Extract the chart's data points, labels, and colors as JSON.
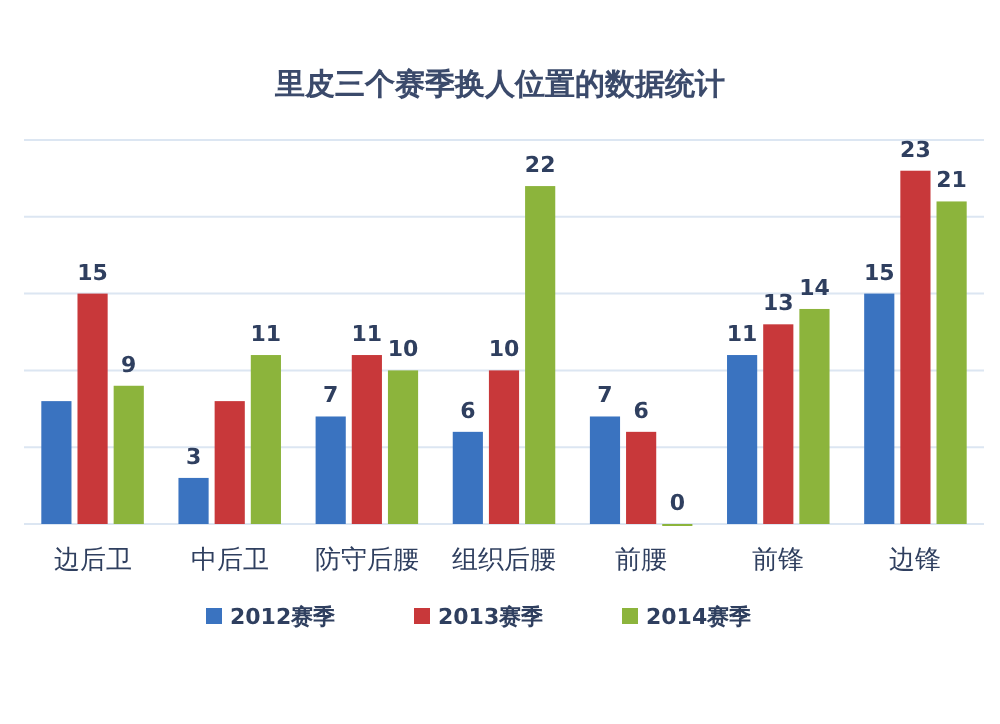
{
  "chart_data": {
    "type": "bar",
    "title": "里皮三个赛季换人位置的数据统计",
    "categories": [
      "边后卫",
      "中后卫",
      "防守后腰",
      "组织后腰",
      "前腰",
      "前锋",
      "边锋"
    ],
    "series": [
      {
        "name": "2012赛季",
        "color": "#3a73c0",
        "values": [
          8,
          3,
          7,
          6,
          7,
          11,
          15
        ],
        "value_labels": [
          null,
          "3",
          "7",
          "6",
          "7",
          "11",
          "15"
        ]
      },
      {
        "name": "2013赛季",
        "color": "#c8383a",
        "values": [
          15,
          8,
          11,
          10,
          6,
          13,
          23
        ],
        "value_labels": [
          "15",
          null,
          "11",
          "10",
          "6",
          "13",
          "23"
        ]
      },
      {
        "name": "2014赛季",
        "color": "#8cb43c",
        "values": [
          9,
          11,
          10,
          22,
          0,
          14,
          21
        ],
        "value_labels": [
          "9",
          "11",
          "10",
          "22",
          "0",
          "14",
          "21"
        ]
      }
    ],
    "ylim": [
      0,
      25
    ],
    "yticks": [
      {
        "value": 0,
        "label": null
      },
      {
        "value": 5,
        "label": null
      },
      {
        "value": 10,
        "label": null
      },
      {
        "value": 15,
        "label": null
      },
      {
        "value": 20,
        "label": null
      },
      {
        "value": 25,
        "label": null
      }
    ],
    "grid": "y",
    "legend": "bottom"
  }
}
